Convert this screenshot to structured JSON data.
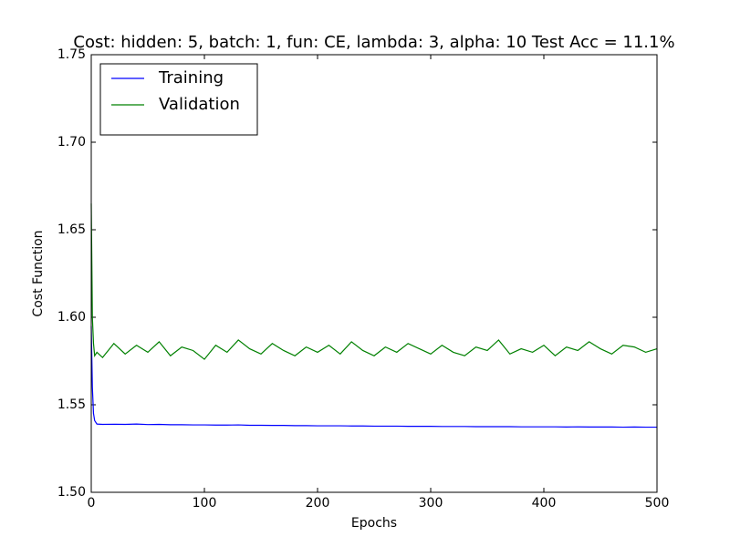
{
  "chart_data": {
    "type": "line",
    "title": "Cost: hidden: 5, batch: 1, fun: CE, lambda: 3, alpha: 10  Test Acc = 11.1%",
    "x_label": "Epochs",
    "y_label": "Cost Function",
    "x": [
      0,
      1,
      2,
      3,
      5,
      10,
      20,
      30,
      40,
      50,
      60,
      70,
      80,
      90,
      100,
      110,
      120,
      130,
      140,
      150,
      160,
      170,
      180,
      190,
      200,
      210,
      220,
      230,
      240,
      250,
      260,
      270,
      280,
      290,
      300,
      310,
      320,
      330,
      340,
      350,
      360,
      370,
      380,
      390,
      400,
      410,
      420,
      430,
      440,
      450,
      460,
      470,
      480,
      490,
      500
    ],
    "series": [
      {
        "name": "Training",
        "color": "#0000ff",
        "values": [
          1.595,
          1.56,
          1.545,
          1.541,
          1.539,
          1.5388,
          1.5389,
          1.5388,
          1.539,
          1.5387,
          1.5388,
          1.5386,
          1.5386,
          1.5385,
          1.5385,
          1.5384,
          1.5384,
          1.5385,
          1.5383,
          1.5383,
          1.5382,
          1.5382,
          1.5381,
          1.5381,
          1.538,
          1.538,
          1.538,
          1.5379,
          1.5379,
          1.5378,
          1.5378,
          1.5378,
          1.5377,
          1.5377,
          1.5377,
          1.5376,
          1.5376,
          1.5376,
          1.5375,
          1.5375,
          1.5375,
          1.5375,
          1.5374,
          1.5374,
          1.5374,
          1.5374,
          1.5373,
          1.5374,
          1.5373,
          1.5373,
          1.5373,
          1.5372,
          1.5373,
          1.5372,
          1.5372
        ]
      },
      {
        "name": "Validation",
        "color": "#008000",
        "values": [
          1.665,
          1.6,
          1.585,
          1.578,
          1.58,
          1.577,
          1.585,
          1.579,
          1.584,
          1.58,
          1.586,
          1.578,
          1.583,
          1.581,
          1.576,
          1.584,
          1.58,
          1.587,
          1.582,
          1.579,
          1.585,
          1.581,
          1.578,
          1.583,
          1.58,
          1.584,
          1.579,
          1.586,
          1.581,
          1.578,
          1.583,
          1.58,
          1.585,
          1.582,
          1.579,
          1.584,
          1.58,
          1.578,
          1.583,
          1.581,
          1.587,
          1.579,
          1.582,
          1.58,
          1.584,
          1.578,
          1.583,
          1.581,
          1.586,
          1.582,
          1.579,
          1.584,
          1.583,
          1.58,
          1.582
        ]
      }
    ],
    "xlim": [
      0,
      500
    ],
    "xticks": [
      0,
      100,
      200,
      300,
      400,
      500
    ],
    "ylim": [
      1.5,
      1.75
    ],
    "yticks": [
      {
        "value": 1.5,
        "label": "1.50"
      },
      1.55,
      {
        "value": 1.6,
        "label": "1.60"
      },
      1.65,
      {
        "value": 1.7,
        "label": "1.70"
      },
      1.75
    ],
    "grid": false,
    "legend": "upper left"
  }
}
